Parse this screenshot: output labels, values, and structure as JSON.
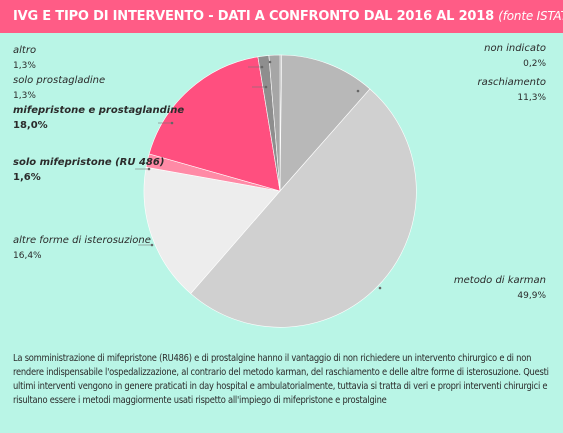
{
  "header": {
    "title": "IVG E TIPO DI INTERVENTO - DATI A CONFRONTO DAL 2016 AL 2018",
    "source": "(fonte ISTAT)"
  },
  "colors": {
    "background": "#b9f5e6",
    "title_bar": "#ff5c86",
    "title_text": "#ffffff"
  },
  "chart_data": {
    "type": "pie",
    "title": "IVG E TIPO DI INTERVENTO - DATI A CONFRONTO DAL 2016 AL 2018",
    "legend": "none",
    "slices": [
      {
        "label": "non indicato",
        "display": "0,2%",
        "value": 0.2,
        "color": "#b0b0b0",
        "emphasis": false
      },
      {
        "label": "raschiamento",
        "display": "11,3%",
        "value": 11.3,
        "color": "#b8b8b8",
        "emphasis": false
      },
      {
        "label": "metodo di karman",
        "display": "49,9%",
        "value": 49.9,
        "color": "#d0d0d0",
        "emphasis": false
      },
      {
        "label": "altre forme di isterosuzione",
        "display": "16,4%",
        "value": 16.4,
        "color": "#ededed",
        "emphasis": false
      },
      {
        "label": "solo mifepristone (RU 486)",
        "display": "1,6%",
        "value": 1.6,
        "color": "#ff8aa6",
        "emphasis": true
      },
      {
        "label": "mifepristone e prostaglandine",
        "display": "18,0%",
        "value": 18.0,
        "color": "#ff4f7f",
        "emphasis": true
      },
      {
        "label": "solo prostagladine",
        "display": "1,3%",
        "value": 1.3,
        "color": "#8e8e8e",
        "emphasis": false
      },
      {
        "label": "altro",
        "display": "1,3%",
        "value": 1.3,
        "color": "#a6a6a6",
        "emphasis": false
      }
    ]
  },
  "caption": "La somministrazione di mifepristone (RU486) e di prostalgine hanno il vantaggio di non richiedere un intervento chirurgico e di non rendere indispensabile l'ospedalizzazione, al contrario del metodo karman, del raschiamento e delle altre forme di isterosuzione. Questi ultimi interventi vengono in genere praticati in day hospital e ambulatorialmente, tuttavia si tratta di veri e propri interventi chirurgici e risultano essere i metodi maggiormente usati rispetto all'impiego di mifepristone e prostalgine"
}
